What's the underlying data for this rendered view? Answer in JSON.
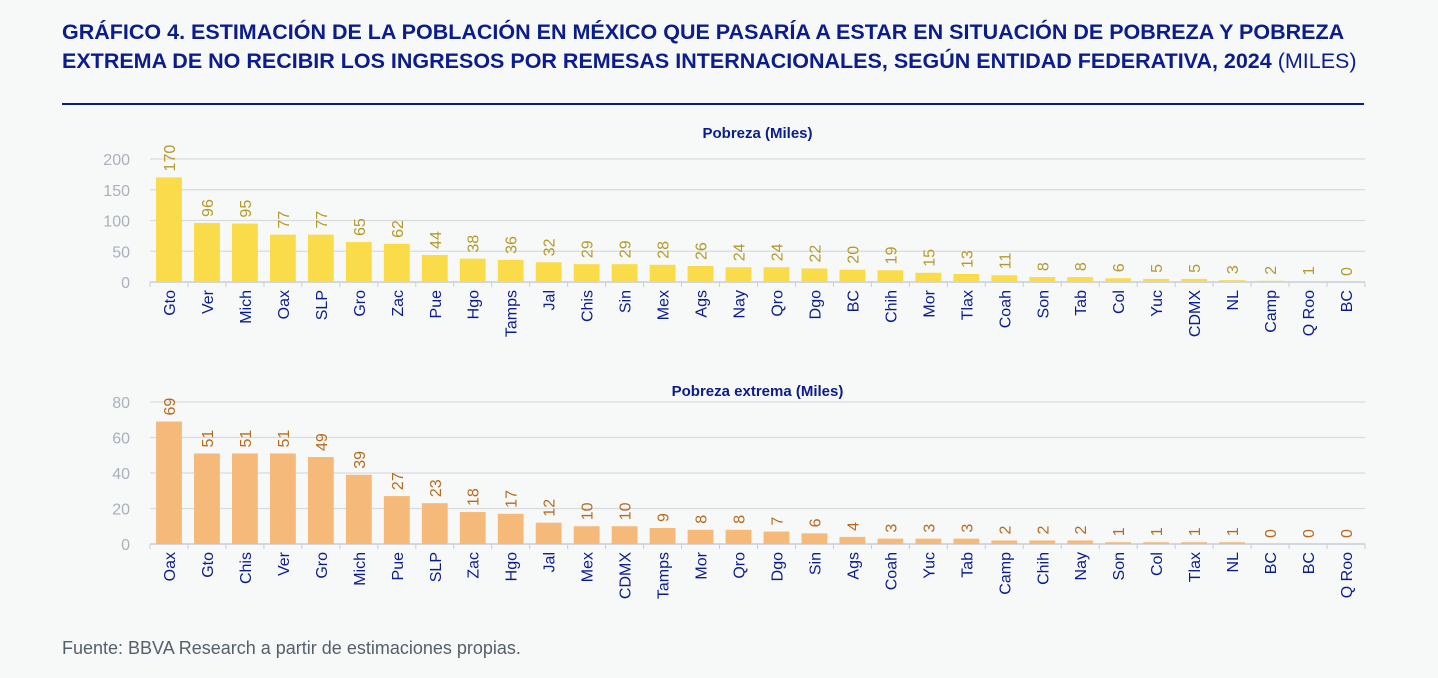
{
  "title": "GRÁFICO 4. ESTIMACIÓN DE LA POBLACIÓN EN MÉXICO QUE PASARÍA A ESTAR EN SITUACIÓN DE POBREZA Y POBREZA EXTREMA DE NO RECIBIR LOS INGRESOS POR REMESAS INTERNACIONALES, SEGÚN ENTIDAD FEDERATIVA, 2024",
  "title_unit": "(MILES)",
  "source": "Fuente: BBVA Research a partir de estimaciones propias.",
  "chart_data": [
    {
      "type": "bar",
      "title": "Pobreza (Miles)",
      "categories": [
        "Gto",
        "Ver",
        "Mich",
        "Oax",
        "SLP",
        "Gro",
        "Zac",
        "Pue",
        "Hgo",
        "Tamps",
        "Jal",
        "Chis",
        "Sin",
        "Mex",
        "Ags",
        "Nay",
        "Qro",
        "Dgo",
        "BC",
        "Chih",
        "Mor",
        "Tlax",
        "Coah",
        "Son",
        "Tab",
        "Col",
        "Yuc",
        "CDMX",
        "NL",
        "Camp",
        "Q Roo",
        "BC"
      ],
      "values": [
        170,
        96,
        95,
        77,
        77,
        65,
        62,
        44,
        38,
        36,
        32,
        29,
        29,
        28,
        26,
        24,
        24,
        22,
        20,
        19,
        15,
        13,
        11,
        8,
        8,
        6,
        5,
        5,
        3,
        2,
        1,
        0
      ],
      "yticks": [
        0,
        50,
        100,
        150,
        200
      ],
      "ylim": [
        0,
        200
      ],
      "grid": true,
      "bar_color": "#fadb4a",
      "label_color": "#b39a2a"
    },
    {
      "type": "bar",
      "title": "Pobreza extrema (Miles)",
      "categories": [
        "Oax",
        "Gto",
        "Chis",
        "Ver",
        "Gro",
        "Mich",
        "Pue",
        "SLP",
        "Zac",
        "Hgo",
        "Jal",
        "Mex",
        "CDMX",
        "Tamps",
        "Mor",
        "Qro",
        "Dgo",
        "Sin",
        "Ags",
        "Coah",
        "Yuc",
        "Tab",
        "Camp",
        "Chih",
        "Nay",
        "Son",
        "Col",
        "Tlax",
        "NL",
        "BC",
        "BC",
        "Q Roo"
      ],
      "values": [
        69,
        51,
        51,
        51,
        49,
        39,
        27,
        23,
        18,
        17,
        12,
        10,
        10,
        9,
        8,
        8,
        7,
        6,
        4,
        3,
        3,
        3,
        2,
        2,
        2,
        1,
        1,
        1,
        1,
        0,
        0,
        0
      ],
      "yticks": [
        0,
        20,
        40,
        60,
        80
      ],
      "ylim": [
        0,
        80
      ],
      "grid": true,
      "bar_color": "#f5b97a",
      "label_color": "#b86a1e"
    }
  ]
}
